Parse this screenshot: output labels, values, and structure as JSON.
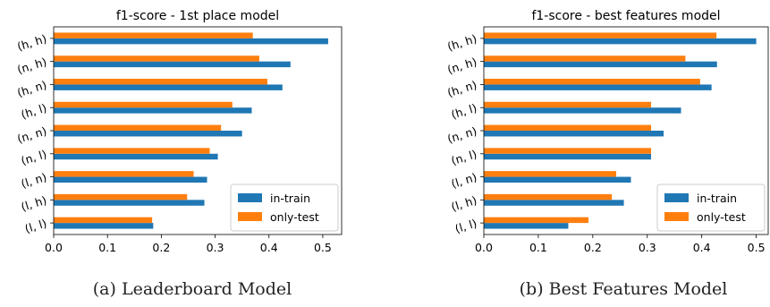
{
  "chart_data": [
    {
      "type": "bar",
      "orientation": "horizontal",
      "title": "f1-score - 1st place model",
      "caption": "(a) Leaderboard Model",
      "categories": [
        "(h, h)",
        "(n, h)",
        "(h, n)",
        "(h, l)",
        "(n, n)",
        "(n, l)",
        "(l, n)",
        "(l, h)",
        "(l, l)"
      ],
      "series": [
        {
          "name": "in-train",
          "color": "#1f77b4",
          "values": [
            0.51,
            0.44,
            0.425,
            0.368,
            0.35,
            0.305,
            0.285,
            0.28,
            0.185
          ]
        },
        {
          "name": "only-test",
          "color": "#ff7f0e",
          "values": [
            0.37,
            0.382,
            0.397,
            0.332,
            0.311,
            0.29,
            0.26,
            0.248,
            0.183
          ]
        }
      ],
      "xlim": [
        0,
        0.535
      ],
      "xticks": [
        "0.0",
        "0.1",
        "0.2",
        "0.3",
        "0.4",
        "0.5"
      ],
      "xtick_values": [
        0,
        0.1,
        0.2,
        0.3,
        0.4,
        0.5
      ],
      "legend": "lower-right",
      "grid": false
    },
    {
      "type": "bar",
      "orientation": "horizontal",
      "title": "f1-score - best features model",
      "caption": "(b) Best Features Model",
      "categories": [
        "(h, h)",
        "(n, h)",
        "(h, n)",
        "(h, l)",
        "(n, n)",
        "(n, l)",
        "(l, n)",
        "(l, h)",
        "(l, l)"
      ],
      "series": [
        {
          "name": "in-train",
          "color": "#1f77b4",
          "values": [
            0.5,
            0.428,
            0.418,
            0.362,
            0.33,
            0.307,
            0.27,
            0.257,
            0.155
          ]
        },
        {
          "name": "only-test",
          "color": "#ff7f0e",
          "values": [
            0.427,
            0.37,
            0.397,
            0.307,
            0.307,
            0.307,
            0.243,
            0.235,
            0.192
          ]
        }
      ],
      "xlim": [
        0,
        0.522
      ],
      "xticks": [
        "0.0",
        "0.1",
        "0.2",
        "0.3",
        "0.4",
        "0.5"
      ],
      "xtick_values": [
        0,
        0.1,
        0.2,
        0.3,
        0.4,
        0.5
      ],
      "legend": "lower-right",
      "grid": false
    }
  ]
}
